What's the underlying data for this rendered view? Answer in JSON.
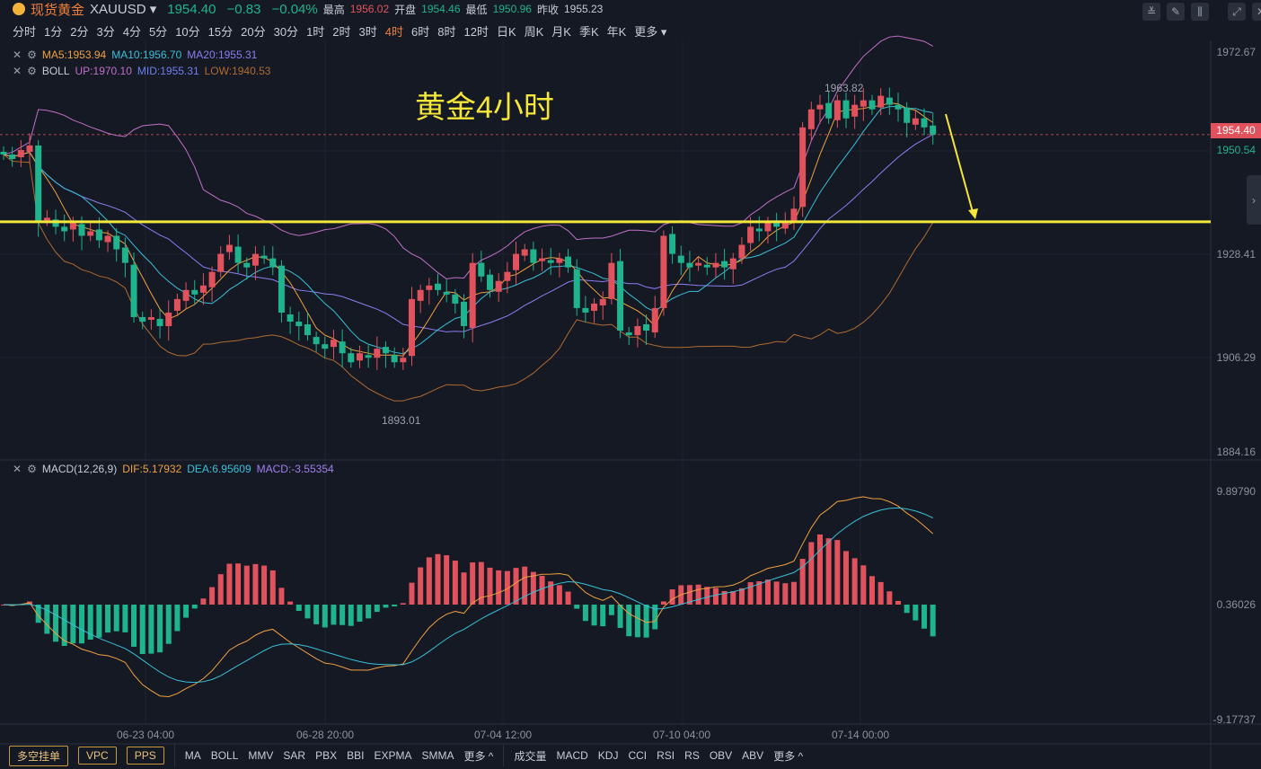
{
  "header": {
    "name": "现货黄金",
    "symbol": "XAUUSD",
    "price": "1954.40",
    "change": "−0.83",
    "change_pct": "−0.04%",
    "high_label": "最高",
    "high": "1956.02",
    "open_label": "开盘",
    "open": "1954.46",
    "low_label": "最低",
    "low": "1950.96",
    "prev_label": "昨收",
    "prev": "1955.23"
  },
  "periods": [
    "分时",
    "1分",
    "2分",
    "3分",
    "4分",
    "5分",
    "10分",
    "15分",
    "20分",
    "30分",
    "1时",
    "2时",
    "3时",
    "4时",
    "6时",
    "8时",
    "12时",
    "日K",
    "周K",
    "月K",
    "季K",
    "年K",
    "更多"
  ],
  "active_period": "4时",
  "legend": {
    "ma5": "MA5:1953.94",
    "ma10": "MA10:1956.70",
    "ma20": "MA20:1955.31",
    "boll": "BOLL",
    "up": "UP:1970.10",
    "mid": "MID:1955.31",
    "low": "LOW:1940.53"
  },
  "macd_legend": {
    "name": "MACD(12,26,9)",
    "dif": "DIF:5.17932",
    "dea": "DEA:6.95609",
    "macd": "MACD:-3.55354"
  },
  "annotation": "黄金4小时",
  "high_mark": "1963.82",
  "low_mark": "1893.01",
  "current_price": "1954.40",
  "current_alt": "1950.54",
  "colors": {
    "up": "#e2525c",
    "down": "#1fb48d",
    "ma5": "#f0a040",
    "ma10": "#38c0d8",
    "ma20": "#8a7ef0",
    "boll_up": "#c070c8",
    "boll_low": "#b06a30",
    "annotation": "#f5e63a"
  },
  "chart_data": {
    "type": "candlestick",
    "price_ticks": [
      "1972.67",
      "1950.54",
      "1928.41",
      "1906.29",
      "1884.16"
    ],
    "price_range": [
      1884.16,
      1972.67
    ],
    "macd_ticks": [
      "9.89790",
      "0.36026",
      "-9.17737"
    ],
    "macd_range": [
      -9.17737,
      9.8979
    ],
    "x_ticks": [
      "06-23 04:00",
      "06-28 20:00",
      "07-04 12:00",
      "07-10 04:00",
      "07-14 00:00"
    ],
    "support_level": 1935.1,
    "closes": [
      1950,
      1949,
      1951,
      1952,
      1935,
      1936,
      1934,
      1933,
      1935,
      1932,
      1933,
      1931,
      1932,
      1929,
      1926,
      1914,
      1913,
      1914,
      1912,
      1915,
      1918,
      1920,
      1919,
      1921,
      1924,
      1928,
      1930,
      1926,
      1925,
      1928,
      1927,
      1925,
      1915,
      1913,
      1912,
      1910,
      1908,
      1907,
      1909,
      1906,
      1904,
      1906,
      1905,
      1907,
      1906,
      1904,
      1905,
      1918,
      1920,
      1921,
      1920,
      1919,
      1917,
      1912,
      1926,
      1923,
      1920,
      1922,
      1924,
      1928,
      1929,
      1926,
      1927,
      1926,
      1927,
      1925,
      1916,
      1915,
      1917,
      1918,
      1926,
      1911,
      1910,
      1912,
      1911,
      1916,
      1932,
      1928,
      1926,
      1925,
      1926,
      1925,
      1926,
      1925,
      1927,
      1930,
      1934,
      1933,
      1935,
      1934,
      1935,
      1938,
      1956,
      1960,
      1961,
      1958,
      1962,
      1958,
      1961,
      1962,
      1960,
      1963,
      1961,
      1960,
      1957,
      1958,
      1956,
      1954.4
    ]
  },
  "bottom": {
    "buttons": [
      "多空挂单",
      "VPC",
      "PPS"
    ],
    "main_ind": [
      "MA",
      "BOLL",
      "MMV",
      "SAR",
      "PBX",
      "BBI",
      "EXPMA",
      "SMMA",
      "更多 ^"
    ],
    "sub_ind": [
      "成交量",
      "MACD",
      "KDJ",
      "CCI",
      "RSI",
      "RS",
      "OBV",
      "ABV",
      "更多 ^"
    ]
  }
}
